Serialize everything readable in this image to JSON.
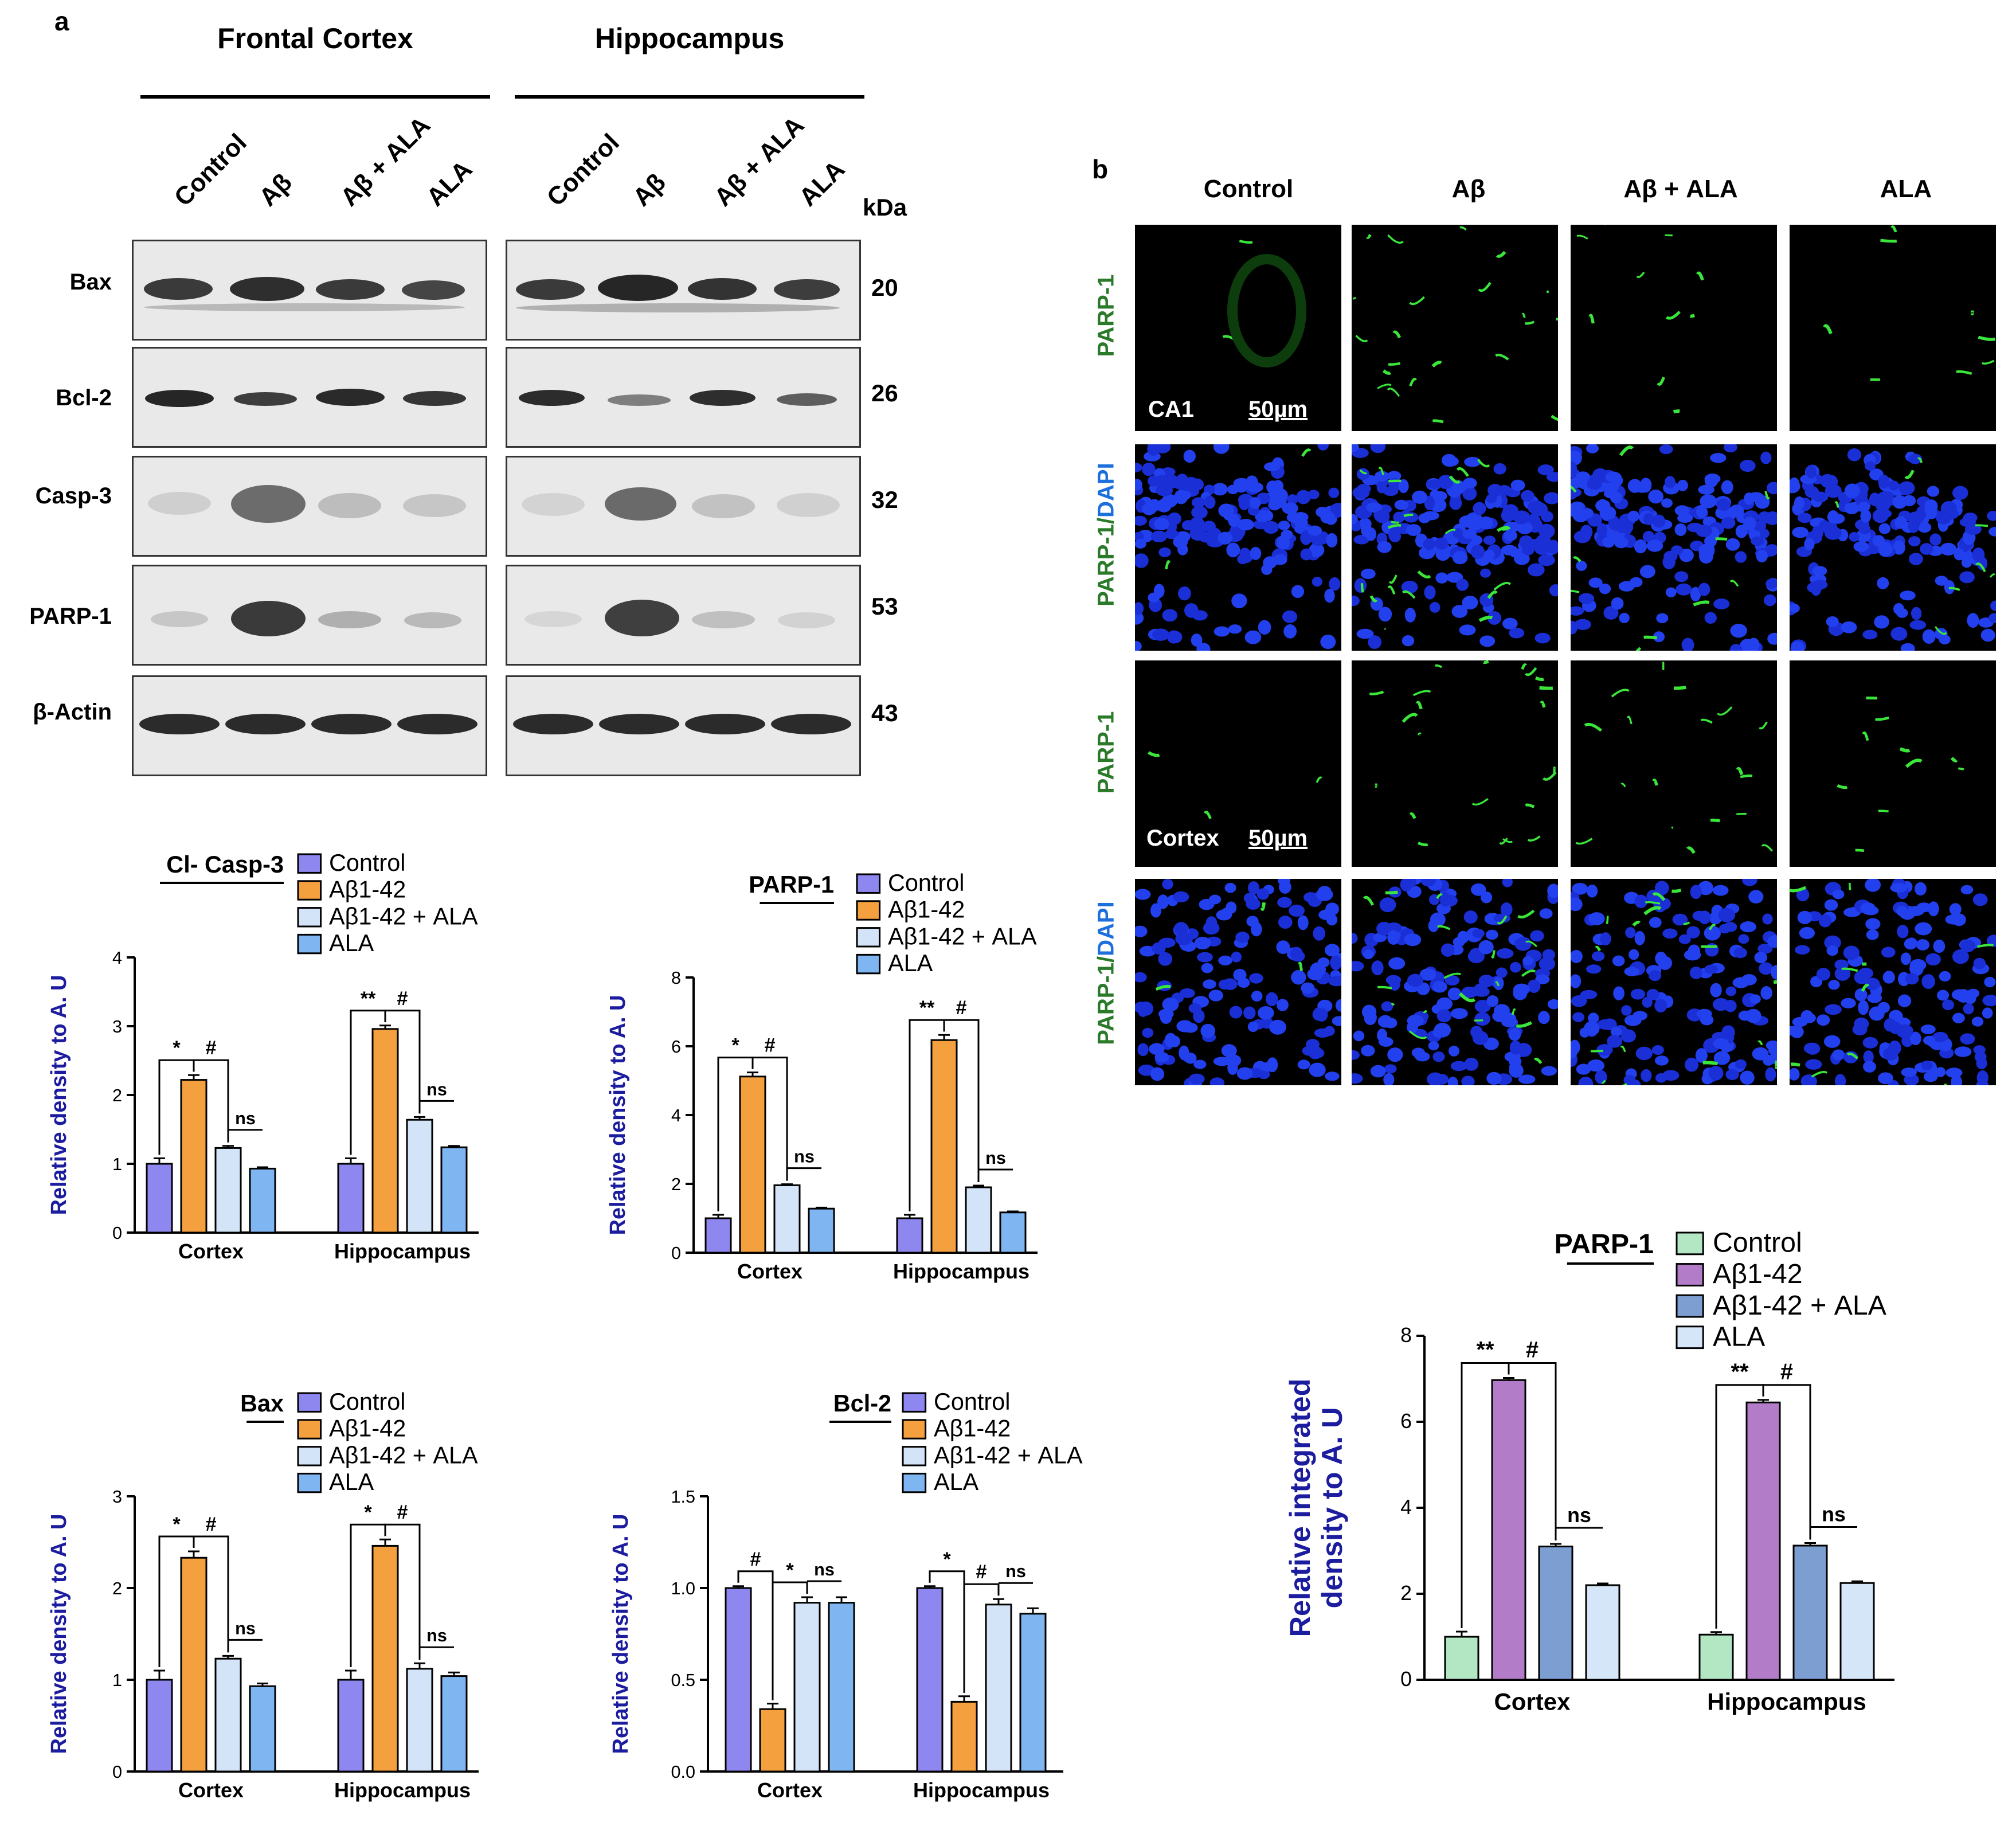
{
  "panel_a": {
    "letter": "a",
    "regions": [
      "Frontal Cortex",
      "Hippocampus"
    ],
    "lanes": [
      "Control",
      "Aβ",
      "Aβ + ALA",
      "ALA"
    ],
    "kda_header": "kDa",
    "rows": [
      {
        "label": "Bax",
        "kda": "20"
      },
      {
        "label": "Bcl-2",
        "kda": "26"
      },
      {
        "label": "Casp-3",
        "kda": "32"
      },
      {
        "label": "PARP-1",
        "kda": "53"
      },
      {
        "label": "β-Actin",
        "kda": "43"
      }
    ]
  },
  "panel_b": {
    "letter": "b",
    "columns": [
      "Control",
      "Aβ",
      "Aβ + ALA",
      "ALA"
    ],
    "row_labels": [
      {
        "main": "PARP-1",
        "suffix": ""
      },
      {
        "main": "PARP-1/",
        "suffix": "DAPI"
      },
      {
        "main": "PARP-1",
        "suffix": ""
      },
      {
        "main": "PARP-1/",
        "suffix": "DAPI"
      }
    ],
    "tags": [
      {
        "region": "CA1",
        "scale": "50µm"
      },
      {
        "region": "Cortex",
        "scale": "50µm"
      }
    ]
  },
  "colors": {
    "purple": "#8f87f0",
    "orange": "#f5a03e",
    "light_blue": "#d3e4f9",
    "sky_blue": "#7fb6f2",
    "green": "#b3e6c3",
    "violet": "#b37cc8",
    "steel": "#7c9ed1",
    "pale": "#d5e6f8",
    "axis_title": "#1c1c9e",
    "if_green": "#2a7a2a",
    "if_blue": "#1d6fdc"
  },
  "chart_data": [
    {
      "type": "bar",
      "title": "Cl- Casp-3",
      "legend": [
        "Control",
        "Aβ1-42",
        "Aβ1-42 + ALA",
        "ALA"
      ],
      "categories": [
        "Cortex",
        "Hippocampus"
      ],
      "ylabel": "Relative density to A. U",
      "ylim": [
        0,
        4
      ],
      "yticks": [
        "0",
        "1",
        "2",
        "3",
        "4"
      ],
      "series": [
        {
          "name": "Control",
          "values": [
            1.0,
            1.0
          ],
          "errors": [
            0.08,
            0.08
          ]
        },
        {
          "name": "Aβ1-42",
          "values": [
            2.22,
            2.96
          ],
          "errors": [
            0.07,
            0.05
          ]
        },
        {
          "name": "Aβ1-42 + ALA",
          "values": [
            1.23,
            1.64
          ],
          "errors": [
            0.03,
            0.04
          ]
        },
        {
          "name": "ALA",
          "values": [
            0.93,
            1.24
          ],
          "errors": [
            0.02,
            0.02
          ]
        }
      ],
      "annotations": [
        {
          "text": "*",
          "category": 0,
          "from": 0,
          "to": 1
        },
        {
          "text": "#",
          "category": 0,
          "from": 1,
          "to": 2
        },
        {
          "text": "ns",
          "category": 0,
          "from": 2,
          "to": 3
        },
        {
          "text": "**",
          "category": 1,
          "from": 0,
          "to": 1
        },
        {
          "text": "#",
          "category": 1,
          "from": 1,
          "to": 2
        },
        {
          "text": "ns",
          "category": 1,
          "from": 2,
          "to": 3
        }
      ]
    },
    {
      "type": "bar",
      "title": "PARP-1",
      "legend": [
        "Control",
        "Aβ1-42",
        "Aβ1-42 + ALA",
        "ALA"
      ],
      "categories": [
        "Cortex",
        "Hippocampus"
      ],
      "ylabel": "Relative density to A. U",
      "ylim": [
        0,
        8
      ],
      "yticks": [
        "0",
        "2",
        "4",
        "6",
        "8"
      ],
      "series": [
        {
          "name": "Control",
          "values": [
            1.0,
            1.0
          ],
          "errors": [
            0.1,
            0.1
          ]
        },
        {
          "name": "Aβ1-42",
          "values": [
            5.12,
            6.18
          ],
          "errors": [
            0.12,
            0.15
          ]
        },
        {
          "name": "Aβ1-42 + ALA",
          "values": [
            1.96,
            1.9
          ],
          "errors": [
            0.03,
            0.05
          ]
        },
        {
          "name": "ALA",
          "values": [
            1.28,
            1.17
          ],
          "errors": [
            0.03,
            0.03
          ]
        }
      ],
      "annotations": [
        {
          "text": "*",
          "category": 0,
          "from": 0,
          "to": 1
        },
        {
          "text": "#",
          "category": 0,
          "from": 1,
          "to": 2
        },
        {
          "text": "ns",
          "category": 0,
          "from": 2,
          "to": 3
        },
        {
          "text": "**",
          "category": 1,
          "from": 0,
          "to": 1
        },
        {
          "text": "#",
          "category": 1,
          "from": 1,
          "to": 2
        },
        {
          "text": "ns",
          "category": 1,
          "from": 2,
          "to": 3
        }
      ]
    },
    {
      "type": "bar",
      "title": "Bax",
      "legend": [
        "Control",
        "Aβ1-42",
        "Aβ1-42 + ALA",
        "ALA"
      ],
      "categories": [
        "Cortex",
        "Hippocampus"
      ],
      "ylabel": "Relative density to A. U",
      "ylim": [
        0,
        3
      ],
      "yticks": [
        "0",
        "1",
        "2",
        "3"
      ],
      "series": [
        {
          "name": "Control",
          "values": [
            1.0,
            1.0
          ],
          "errors": [
            0.1,
            0.1
          ]
        },
        {
          "name": "Aβ1-42",
          "values": [
            2.33,
            2.46
          ],
          "errors": [
            0.07,
            0.07
          ]
        },
        {
          "name": "Aβ1-42 + ALA",
          "values": [
            1.23,
            1.12
          ],
          "errors": [
            0.03,
            0.06
          ]
        },
        {
          "name": "ALA",
          "values": [
            0.93,
            1.04
          ],
          "errors": [
            0.03,
            0.04
          ]
        }
      ],
      "annotations": [
        {
          "text": "*",
          "category": 0,
          "from": 0,
          "to": 1
        },
        {
          "text": "#",
          "category": 0,
          "from": 1,
          "to": 2
        },
        {
          "text": "ns",
          "category": 0,
          "from": 2,
          "to": 3
        },
        {
          "text": "*",
          "category": 1,
          "from": 0,
          "to": 1
        },
        {
          "text": "#",
          "category": 1,
          "from": 1,
          "to": 2
        },
        {
          "text": "ns",
          "category": 1,
          "from": 2,
          "to": 3
        }
      ]
    },
    {
      "type": "bar",
      "title": "Bcl-2",
      "legend": [
        "Control",
        "Aβ1-42",
        "Aβ1-42 + ALA",
        "ALA"
      ],
      "categories": [
        "Cortex",
        "Hippocampus"
      ],
      "ylabel": "Relative density to A. U",
      "ylim": [
        0,
        1.5
      ],
      "yticks": [
        "0.0",
        "0.5",
        "1.0",
        "1.5"
      ],
      "series": [
        {
          "name": "Control",
          "values": [
            1.0,
            1.0
          ],
          "errors": [
            0.01,
            0.01
          ]
        },
        {
          "name": "Aβ1-42",
          "values": [
            0.34,
            0.38
          ],
          "errors": [
            0.03,
            0.03
          ]
        },
        {
          "name": "Aβ1-42 + ALA",
          "values": [
            0.92,
            0.91
          ],
          "errors": [
            0.03,
            0.03
          ]
        },
        {
          "name": "ALA",
          "values": [
            0.92,
            0.86
          ],
          "errors": [
            0.03,
            0.03
          ]
        }
      ],
      "annotations": [
        {
          "text": "#",
          "category": 0,
          "from": 0,
          "to": 1
        },
        {
          "text": "*",
          "category": 0,
          "from": 1,
          "to": 2
        },
        {
          "text": "ns",
          "category": 0,
          "from": 2,
          "to": 3
        },
        {
          "text": "*",
          "category": 1,
          "from": 0,
          "to": 1
        },
        {
          "text": "#",
          "category": 1,
          "from": 1,
          "to": 2
        },
        {
          "text": "ns",
          "category": 1,
          "from": 2,
          "to": 3
        }
      ]
    },
    {
      "type": "bar",
      "title": "PARP-1",
      "legend": [
        "Control",
        "Aβ1-42",
        "Aβ1-42 + ALA",
        "ALA"
      ],
      "categories": [
        "Cortex",
        "Hippocampus"
      ],
      "ylabel_lines": [
        "Relative integrated",
        "density to A. U"
      ],
      "ylim": [
        0,
        8
      ],
      "yticks": [
        "0",
        "2",
        "4",
        "6",
        "8"
      ],
      "series": [
        {
          "name": "Control",
          "values": [
            1.0,
            1.05
          ],
          "errors": [
            0.12,
            0.06
          ]
        },
        {
          "name": "Aβ1-42",
          "values": [
            6.97,
            6.45
          ],
          "errors": [
            0.05,
            0.06
          ]
        },
        {
          "name": "Aβ1-42 + ALA",
          "values": [
            3.1,
            3.12
          ],
          "errors": [
            0.06,
            0.06
          ]
        },
        {
          "name": "ALA",
          "values": [
            2.2,
            2.25
          ],
          "errors": [
            0.04,
            0.04
          ]
        }
      ],
      "annotations": [
        {
          "text": "**",
          "category": 0,
          "from": 0,
          "to": 1
        },
        {
          "text": "#",
          "category": 0,
          "from": 1,
          "to": 2
        },
        {
          "text": "ns",
          "category": 0,
          "from": 2,
          "to": 3
        },
        {
          "text": "**",
          "category": 1,
          "from": 0,
          "to": 1
        },
        {
          "text": "#",
          "category": 1,
          "from": 1,
          "to": 2
        },
        {
          "text": "ns",
          "category": 1,
          "from": 2,
          "to": 3
        }
      ]
    }
  ]
}
